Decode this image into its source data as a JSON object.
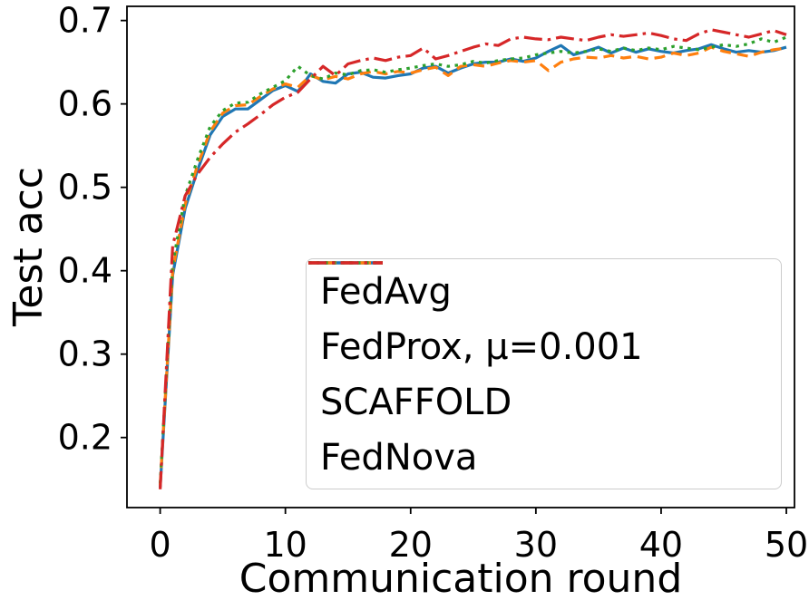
{
  "chart_data": {
    "type": "line",
    "title": "",
    "xlabel": "Communication round",
    "ylabel": "Test acc",
    "xlim": [
      -2.65,
      50.65
    ],
    "ylim": [
      0.116,
      0.717
    ],
    "x_ticks": [
      0,
      10,
      20,
      30,
      40,
      50
    ],
    "y_ticks": [
      0.2,
      0.3,
      0.4,
      0.5,
      0.6,
      0.7
    ],
    "grid": false,
    "legend_position": "lower-right-inside",
    "x": [
      0,
      1,
      2,
      3,
      4,
      5,
      6,
      7,
      8,
      9,
      10,
      11,
      12,
      13,
      14,
      15,
      16,
      17,
      18,
      19,
      20,
      21,
      22,
      23,
      24,
      25,
      26,
      27,
      28,
      29,
      30,
      31,
      32,
      33,
      34,
      35,
      36,
      37,
      38,
      39,
      40,
      41,
      42,
      43,
      44,
      45,
      46,
      47,
      48,
      49,
      50
    ],
    "series": [
      {
        "name": "FedAvg",
        "color": "#1f77b4",
        "linestyle": "solid",
        "values": [
          0.14,
          0.395,
          0.475,
          0.521,
          0.563,
          0.585,
          0.594,
          0.594,
          0.605,
          0.616,
          0.622,
          0.615,
          0.636,
          0.627,
          0.625,
          0.636,
          0.638,
          0.632,
          0.631,
          0.634,
          0.636,
          0.643,
          0.645,
          0.637,
          0.643,
          0.648,
          0.65,
          0.65,
          0.654,
          0.651,
          0.655,
          0.663,
          0.67,
          0.659,
          0.663,
          0.668,
          0.661,
          0.667,
          0.662,
          0.666,
          0.663,
          0.661,
          0.664,
          0.666,
          0.671,
          0.666,
          0.662,
          0.664,
          0.662,
          0.664,
          0.668
        ]
      },
      {
        "name": "FedProx, μ=0.001",
        "color": "#ff7f0e",
        "linestyle": "dashed",
        "values": [
          0.143,
          0.4,
          0.48,
          0.527,
          0.567,
          0.589,
          0.598,
          0.599,
          0.609,
          0.618,
          0.624,
          0.62,
          0.634,
          0.629,
          0.633,
          0.63,
          0.636,
          0.639,
          0.636,
          0.639,
          0.637,
          0.641,
          0.644,
          0.634,
          0.645,
          0.647,
          0.645,
          0.649,
          0.652,
          0.65,
          0.652,
          0.64,
          0.65,
          0.654,
          0.656,
          0.655,
          0.658,
          0.655,
          0.657,
          0.654,
          0.656,
          0.661,
          0.658,
          0.661,
          0.668,
          0.663,
          0.66,
          0.657,
          0.662,
          0.665,
          0.667
        ]
      },
      {
        "name": "SCAFFOLD",
        "color": "#2ca02c",
        "linestyle": "dotted",
        "values": [
          0.145,
          0.408,
          0.49,
          0.534,
          0.573,
          0.592,
          0.601,
          0.602,
          0.612,
          0.62,
          0.628,
          0.645,
          0.634,
          0.63,
          0.637,
          0.635,
          0.64,
          0.641,
          0.638,
          0.641,
          0.643,
          0.646,
          0.648,
          0.645,
          0.647,
          0.651,
          0.649,
          0.652,
          0.654,
          0.655,
          0.659,
          0.661,
          0.663,
          0.661,
          0.663,
          0.666,
          0.663,
          0.667,
          0.664,
          0.667,
          0.665,
          0.669,
          0.667,
          0.665,
          0.668,
          0.671,
          0.669,
          0.672,
          0.678,
          0.674,
          0.68
        ]
      },
      {
        "name": "FedNova",
        "color": "#d62728",
        "linestyle": "dashdot",
        "values": [
          0.138,
          0.43,
          0.49,
          0.516,
          0.536,
          0.552,
          0.566,
          0.576,
          0.587,
          0.599,
          0.608,
          0.614,
          0.63,
          0.645,
          0.634,
          0.648,
          0.652,
          0.655,
          0.652,
          0.656,
          0.658,
          0.667,
          0.654,
          0.658,
          0.663,
          0.668,
          0.672,
          0.67,
          0.678,
          0.68,
          0.678,
          0.677,
          0.68,
          0.678,
          0.676,
          0.68,
          0.683,
          0.681,
          0.683,
          0.685,
          0.682,
          0.678,
          0.676,
          0.684,
          0.689,
          0.686,
          0.683,
          0.68,
          0.684,
          0.688,
          0.683
        ]
      }
    ]
  }
}
